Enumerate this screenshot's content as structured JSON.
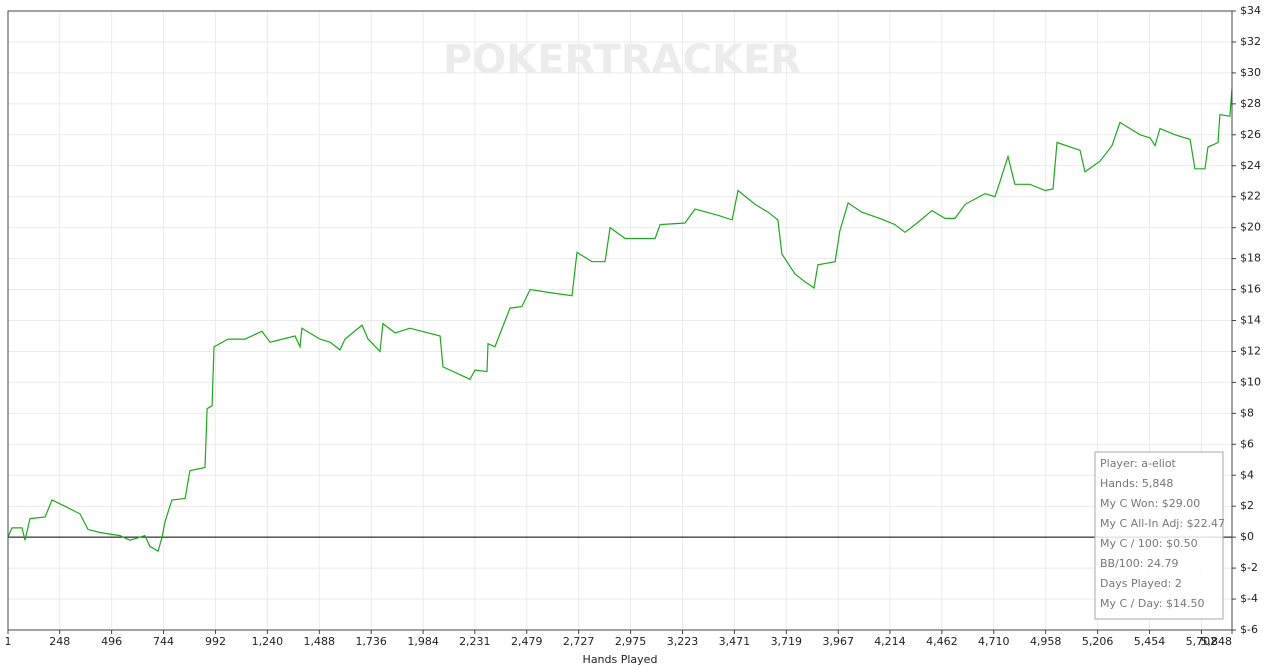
{
  "chart_data": {
    "type": "line",
    "x_label": "Hands Played",
    "watermark": "POKERTRACKER",
    "annotations": [
      "Player: a-eliot",
      "Hands: 5,848",
      "My C Won: $29.00",
      "My C All-In Adj: $22.47",
      "My C / 100: $0.50",
      "BB/100: 24.79",
      "Days Played: 2",
      "My C / Day: $14.50"
    ],
    "grid": true,
    "xlim": [
      1,
      5848
    ],
    "ylim": [
      -6,
      34
    ],
    "xticks": [
      1,
      248,
      496,
      744,
      992,
      {
        "value": 1240,
        "label": "1,240"
      },
      {
        "value": 1488,
        "label": "1,488"
      },
      {
        "value": 1736,
        "label": "1,736"
      },
      {
        "value": 1984,
        "label": "1,984"
      },
      {
        "value": 2231,
        "label": "2,231"
      },
      {
        "value": 2479,
        "label": "2,479"
      },
      {
        "value": 2727,
        "label": "2,727"
      },
      {
        "value": 2975,
        "label": "2,975"
      },
      {
        "value": 3223,
        "label": "3,223"
      },
      {
        "value": 3471,
        "label": "3,471"
      },
      {
        "value": 3719,
        "label": "3,719"
      },
      {
        "value": 3967,
        "label": "3,967"
      },
      {
        "value": 4214,
        "label": "4,214"
      },
      {
        "value": 4462,
        "label": "4,462"
      },
      {
        "value": 4710,
        "label": "4,710"
      },
      {
        "value": 4958,
        "label": "4,958"
      },
      {
        "value": 5206,
        "label": "5,206"
      },
      {
        "value": 5454,
        "label": "5,454"
      },
      {
        "value": 5702,
        "label": "5,702"
      },
      {
        "value": 5848,
        "label": "5,848"
      }
    ],
    "yticks": [
      {
        "value": 34,
        "label": "$34"
      },
      {
        "value": 32,
        "label": "$32"
      },
      {
        "value": 30,
        "label": "$30"
      },
      {
        "value": 28,
        "label": "$28"
      },
      {
        "value": 26,
        "label": "$26"
      },
      {
        "value": 24,
        "label": "$24"
      },
      {
        "value": 22,
        "label": "$22"
      },
      {
        "value": 20,
        "label": "$20"
      },
      {
        "value": 18,
        "label": "$18"
      },
      {
        "value": 16,
        "label": "$16"
      },
      {
        "value": 14,
        "label": "$14"
      },
      {
        "value": 12,
        "label": "$12"
      },
      {
        "value": 10,
        "label": "$10"
      },
      {
        "value": 8,
        "label": "$8"
      },
      {
        "value": 6,
        "label": "$6"
      },
      {
        "value": 4,
        "label": "$4"
      },
      {
        "value": 2,
        "label": "$2"
      },
      {
        "value": 0,
        "label": "$0"
      },
      {
        "value": -2,
        "label": "$-2"
      },
      {
        "value": -4,
        "label": "$-4"
      },
      {
        "value": -6,
        "label": "$-6"
      }
    ],
    "x": [
      1,
      20,
      68,
      82,
      106,
      178,
      211,
      273,
      345,
      383,
      440,
      536,
      584,
      655,
      679,
      718,
      737,
      751,
      784,
      847,
      870,
      942,
      952,
      976,
      985,
      1052,
      1133,
      1214,
      1253,
      1372,
      1396,
      1405,
      1491,
      1539,
      1587,
      1611,
      1692,
      1721,
      1778,
      1792,
      1850,
      1921,
      2065,
      2079,
      2160,
      2208,
      2232,
      2289,
      2294,
      2327,
      2399,
      2456,
      2495,
      2590,
      2695,
      2719,
      2791,
      2853,
      2877,
      2949,
      3092,
      3116,
      3235,
      3283,
      3393,
      3460,
      3488,
      3570,
      3632,
      3679,
      3698,
      3761,
      3808,
      3851,
      3870,
      3952,
      3975,
      4014,
      4080,
      4166,
      4238,
      4286,
      4334,
      4415,
      4477,
      4525,
      4573,
      4668,
      4716,
      4740,
      4778,
      4811,
      4883,
      4955,
      4993,
      5012,
      5122,
      5146,
      5218,
      5275,
      5313,
      5409,
      5457,
      5480,
      5504,
      5576,
      5648,
      5671,
      5719,
      5733,
      5781,
      5790,
      5838,
      5848
    ],
    "series": [
      {
        "color": "#1fa81f",
        "values": [
          0,
          0.6,
          0.6,
          -0.2,
          1.2,
          1.3,
          2.4,
          2.0,
          1.5,
          0.5,
          0.3,
          0.1,
          -0.2,
          0.1,
          -0.6,
          -0.9,
          0.0,
          1.0,
          2.4,
          2.5,
          4.3,
          4.5,
          8.3,
          8.5,
          12.3,
          12.8,
          12.8,
          13.3,
          12.6,
          13.0,
          12.3,
          13.5,
          12.8,
          12.6,
          12.1,
          12.8,
          13.7,
          12.8,
          12.0,
          13.8,
          13.2,
          13.5,
          13.0,
          11.0,
          10.5,
          10.2,
          10.8,
          10.7,
          12.5,
          12.3,
          14.8,
          14.9,
          16.0,
          15.8,
          15.6,
          18.4,
          17.8,
          17.8,
          20.0,
          19.3,
          19.3,
          20.2,
          20.3,
          21.2,
          20.8,
          20.5,
          22.4,
          21.5,
          21.0,
          20.5,
          18.3,
          17.0,
          16.5,
          16.1,
          17.6,
          17.8,
          19.8,
          21.6,
          21.0,
          20.6,
          20.2,
          19.7,
          20.2,
          21.1,
          20.6,
          20.6,
          21.5,
          22.2,
          22.0,
          23.0,
          24.6,
          22.8,
          22.8,
          22.4,
          22.5,
          25.5,
          25.0,
          23.6,
          24.3,
          25.3,
          26.8,
          26.0,
          25.8,
          25.3,
          26.4,
          26.0,
          25.7,
          23.8,
          23.8,
          25.2,
          25.5,
          27.3,
          27.2,
          29.0
        ]
      }
    ]
  }
}
